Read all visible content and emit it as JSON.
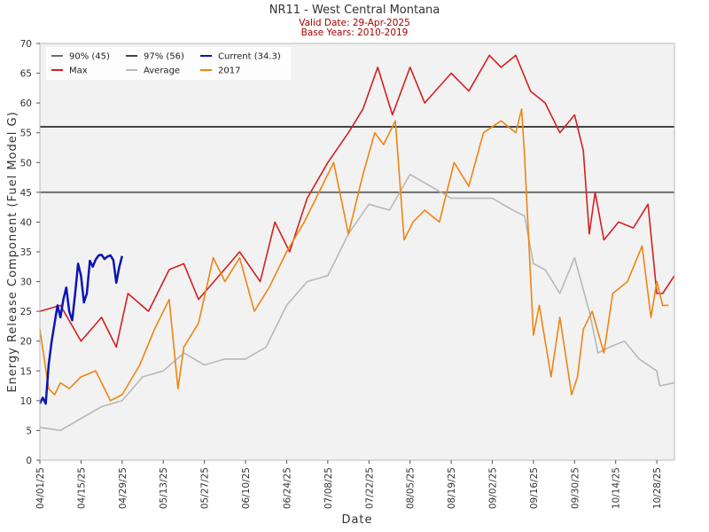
{
  "chart_data": {
    "type": "line",
    "title": "NR11 - West Central Montana",
    "subtitle_lines": [
      "Valid Date: 29-Apr-2025",
      "Base Years: 2010-2019"
    ],
    "xlabel": "Date",
    "ylabel": "Energy Release Component (Fuel Model G)",
    "ylim": [
      0,
      70
    ],
    "yticks": [
      0,
      5,
      10,
      15,
      20,
      25,
      30,
      35,
      40,
      45,
      50,
      55,
      60,
      65,
      70
    ],
    "xlim": [
      "04/01",
      "11/03"
    ],
    "x_tick_labels": [
      "04/01/25",
      "04/15/25",
      "04/29/25",
      "05/13/25",
      "05/27/25",
      "06/10/25",
      "06/24/25",
      "07/08/25",
      "07/22/25",
      "08/05/25",
      "08/19/25",
      "09/02/25",
      "09/16/25",
      "09/30/25",
      "10/14/25",
      "10/28/25"
    ],
    "grid": "alternating horizontal bands",
    "legend_position": "top-left",
    "reference_lines": [
      {
        "name": "90% (45)",
        "value": 45,
        "color": "#6e6e6e"
      },
      {
        "name": "97% (56)",
        "value": 56,
        "color": "#444444"
      }
    ],
    "series": [
      {
        "name": "Max",
        "color": "#d42020",
        "x": [
          "04/01",
          "04/08",
          "04/15",
          "04/22",
          "04/27",
          "05/01",
          "05/08",
          "05/15",
          "05/20",
          "05/25",
          "06/01",
          "06/08",
          "06/15",
          "06/20",
          "06/25",
          "07/01",
          "07/08",
          "07/15",
          "07/20",
          "07/25",
          "07/30",
          "08/05",
          "08/10",
          "08/19",
          "08/25",
          "09/01",
          "09/05",
          "09/10",
          "09/15",
          "09/20",
          "09/25",
          "09/30",
          "10/03",
          "10/05",
          "10/07",
          "10/10",
          "10/15",
          "10/20",
          "10/25",
          "10/28",
          "10/30",
          "11/03"
        ],
        "values": [
          25,
          26,
          20,
          24,
          19,
          28,
          25,
          32,
          33,
          27,
          31,
          35,
          30,
          40,
          35,
          44,
          50,
          55,
          59,
          66,
          58,
          66,
          60,
          65,
          62,
          68,
          66,
          68,
          62,
          60,
          55,
          58,
          52,
          38,
          45,
          37,
          40,
          39,
          43,
          28,
          28,
          31
        ]
      },
      {
        "name": "Average",
        "color": "#b8b8b8",
        "x": [
          "04/01",
          "04/08",
          "04/15",
          "04/22",
          "04/29",
          "05/06",
          "05/13",
          "05/20",
          "05/27",
          "06/03",
          "06/10",
          "06/17",
          "06/24",
          "07/01",
          "07/08",
          "07/15",
          "07/22",
          "07/29",
          "08/05",
          "08/12",
          "08/19",
          "08/26",
          "09/02",
          "09/09",
          "09/13",
          "09/16",
          "09/20",
          "09/25",
          "09/30",
          "10/05",
          "10/08",
          "10/12",
          "10/17",
          "10/22",
          "10/28",
          "10/29",
          "11/03"
        ],
        "values": [
          5.5,
          5,
          7,
          9,
          10,
          14,
          15,
          18,
          16,
          17,
          17,
          19,
          26,
          30,
          31,
          38,
          43,
          42,
          48,
          46,
          44,
          44,
          44,
          42,
          41,
          33,
          32,
          28,
          34,
          25,
          18,
          19,
          20,
          17,
          15,
          12.5,
          13
        ]
      },
      {
        "name": "2017",
        "color": "#f08410",
        "x": [
          "04/01",
          "04/04",
          "04/06",
          "04/08",
          "04/11",
          "04/15",
          "04/20",
          "04/25",
          "04/29",
          "05/05",
          "05/10",
          "05/15",
          "05/18",
          "05/20",
          "05/25",
          "05/30",
          "06/03",
          "06/08",
          "06/13",
          "06/18",
          "06/24",
          "06/30",
          "07/05",
          "07/10",
          "07/15",
          "07/20",
          "07/24",
          "07/27",
          "07/31",
          "08/03",
          "08/06",
          "08/10",
          "08/15",
          "08/20",
          "08/25",
          "08/30",
          "09/05",
          "09/10",
          "09/12",
          "09/13",
          "09/16",
          "09/18",
          "09/22",
          "09/25",
          "09/29",
          "10/01",
          "10/03",
          "10/06",
          "10/10",
          "10/13",
          "10/18",
          "10/23",
          "10/26",
          "10/28",
          "10/30",
          "11/01"
        ],
        "values": [
          22,
          12,
          11,
          13,
          12,
          14,
          15,
          10,
          11,
          16,
          22,
          27,
          12,
          19,
          23,
          34,
          30,
          34,
          25,
          29,
          35,
          40,
          45,
          50,
          38,
          48,
          55,
          53,
          57,
          37,
          40,
          42,
          40,
          50,
          46,
          55,
          57,
          55,
          59,
          51,
          21,
          26,
          14,
          24,
          11,
          14,
          22,
          25,
          18,
          28,
          30,
          36,
          24,
          30,
          26,
          26
        ]
      },
      {
        "name": "Current (34.3)",
        "color": "#0a14b8",
        "x": [
          "04/01",
          "04/02",
          "04/03",
          "04/04",
          "04/05",
          "04/06",
          "04/07",
          "04/08",
          "04/09",
          "04/10",
          "04/11",
          "04/12",
          "04/13",
          "04/14",
          "04/15",
          "04/16",
          "04/17",
          "04/18",
          "04/19",
          "04/20",
          "04/21",
          "04/22",
          "04/23",
          "04/24",
          "04/25",
          "04/26",
          "04/27",
          "04/28",
          "04/29"
        ],
        "values": [
          9.5,
          10.5,
          9.5,
          16,
          20,
          23,
          26,
          24,
          27,
          29,
          25,
          23.5,
          28,
          33,
          31,
          26.5,
          28,
          33.5,
          32.5,
          33.7,
          34.4,
          34.5,
          33.8,
          34.2,
          34.4,
          33.6,
          29.8,
          32.4,
          34.3
        ]
      }
    ]
  }
}
